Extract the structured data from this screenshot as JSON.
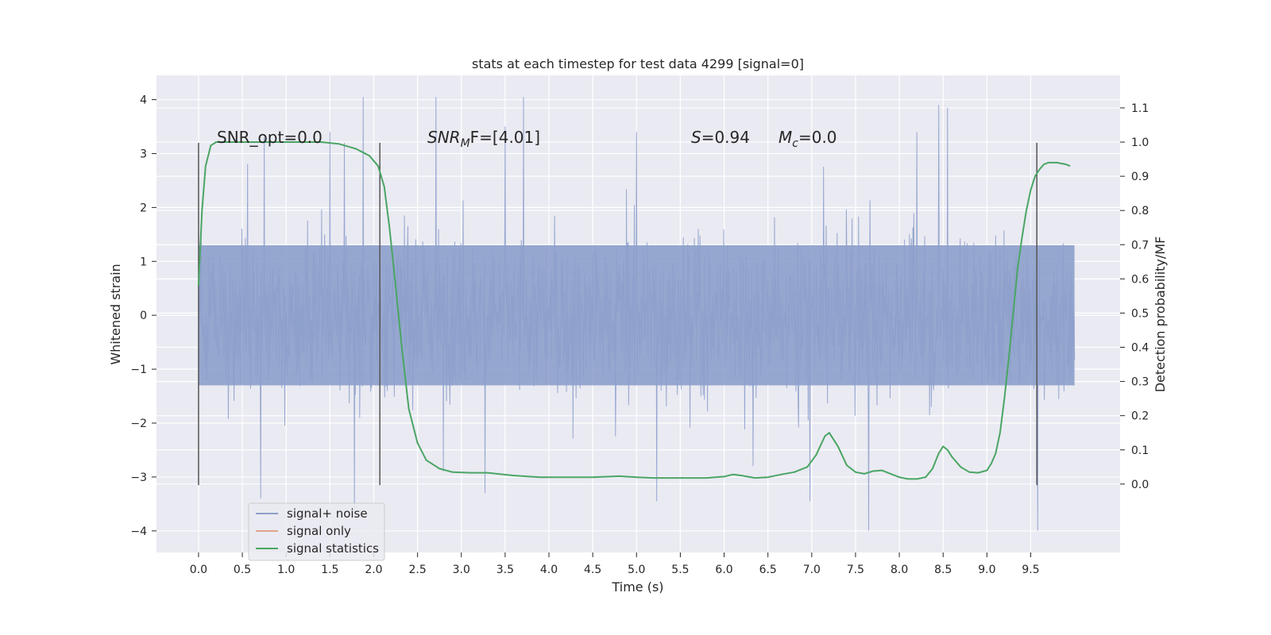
{
  "chart_data": {
    "type": "line",
    "title": "stats at each timestep for test data 4299 [signal=0]",
    "xlabel": "Time (s)",
    "ylabel": "Whitened strain",
    "ylabel_right": "Detection probability/MF",
    "xlim": [
      -0.48,
      10.52
    ],
    "ylim": [
      -4.4,
      4.45
    ],
    "ylim_right": [
      -0.2,
      1.195
    ],
    "x_ticks": [
      0.0,
      0.5,
      1.0,
      1.5,
      2.0,
      2.5,
      3.0,
      3.5,
      4.0,
      4.5,
      5.0,
      5.5,
      6.0,
      6.5,
      7.0,
      7.5,
      8.0,
      8.5,
      9.0,
      9.5
    ],
    "x_tick_labels": [
      "0.0",
      "0.5",
      "1.0",
      "1.5",
      "2.0",
      "2.5",
      "3.0",
      "3.5",
      "4.0",
      "4.5",
      "5.0",
      "5.5",
      "6.0",
      "6.5",
      "7.0",
      "7.5",
      "8.0",
      "8.5",
      "9.0",
      "9.5"
    ],
    "y_ticks": [
      -4,
      -3,
      -2,
      -1,
      0,
      1,
      2,
      3,
      4
    ],
    "y_tick_labels": [
      "−4",
      "−3",
      "−2",
      "−1",
      "0",
      "1",
      "2",
      "3",
      "4"
    ],
    "y_right_ticks": [
      0.0,
      0.1,
      0.2,
      0.3,
      0.4,
      0.5,
      0.6,
      0.7,
      0.8,
      0.9,
      1.0,
      1.1
    ],
    "y_right_tick_labels": [
      "0.0",
      "0.1",
      "0.2",
      "0.3",
      "0.4",
      "0.5",
      "0.6",
      "0.7",
      "0.8",
      "0.9",
      "1.0",
      "1.1"
    ],
    "grid": true,
    "legend_position": "lower-left",
    "annotations": {
      "snr_opt": "SNR_opt=0.0",
      "snr_mf_main": "SNR",
      "snr_mf_sub": "M",
      "snr_mf_rest": "F=[4.01]",
      "s_main": "S",
      "s_rest": "=0.94",
      "mc_main": "M",
      "mc_sub": "c",
      "mc_rest": "=0.0"
    },
    "vertical_markers_x": [
      0.0,
      2.07,
      9.57
    ],
    "vertical_markers_yrange": [
      -3.15,
      3.2
    ],
    "series": [
      {
        "name": "signal+ noise",
        "color": "#8da0cb",
        "axis": "left",
        "x_range": [
          0.0,
          10.0
        ],
        "band": [
          -1.3,
          1.3
        ],
        "notable_spikes": [
          {
            "x": 1.5,
            "y": 3.4
          },
          {
            "x": 1.88,
            "y": 4.05
          },
          {
            "x": 1.78,
            "y": -3.6
          },
          {
            "x": 2.71,
            "y": 4.05
          },
          {
            "x": 3.71,
            "y": 4.05
          },
          {
            "x": 3.5,
            "y": 3.5
          },
          {
            "x": 3.27,
            "y": -3.3
          },
          {
            "x": 5.0,
            "y": 3.4
          },
          {
            "x": 5.23,
            "y": -3.45
          },
          {
            "x": 6.33,
            "y": -2.8
          },
          {
            "x": 6.98,
            "y": -3.45
          },
          {
            "x": 7.65,
            "y": -4.0
          },
          {
            "x": 8.45,
            "y": 3.9
          },
          {
            "x": 8.55,
            "y": 3.85
          },
          {
            "x": 9.58,
            "y": -4.0
          },
          {
            "x": 0.71,
            "y": -3.4
          },
          {
            "x": 0.75,
            "y": 3.3
          },
          {
            "x": 8.2,
            "y": 3.4
          }
        ]
      },
      {
        "name": "signal only",
        "color": "#e1a58a",
        "axis": "left",
        "x": [],
        "y": []
      },
      {
        "name": "signal statistics",
        "color": "#4aa564",
        "axis": "right",
        "x": [
          0.0,
          0.04,
          0.08,
          0.14,
          0.2,
          0.3,
          0.5,
          1.0,
          1.4,
          1.6,
          1.8,
          1.95,
          2.05,
          2.12,
          2.18,
          2.25,
          2.32,
          2.4,
          2.5,
          2.6,
          2.75,
          2.9,
          3.1,
          3.3,
          3.6,
          3.9,
          4.2,
          4.5,
          4.8,
          5.0,
          5.2,
          5.5,
          5.8,
          6.0,
          6.1,
          6.2,
          6.35,
          6.5,
          6.65,
          6.8,
          6.95,
          7.05,
          7.15,
          7.2,
          7.3,
          7.4,
          7.5,
          7.6,
          7.7,
          7.8,
          7.9,
          8.0,
          8.1,
          8.2,
          8.3,
          8.38,
          8.45,
          8.5,
          8.55,
          8.6,
          8.7,
          8.8,
          8.9,
          9.0,
          9.05,
          9.1,
          9.15,
          9.2,
          9.25,
          9.3,
          9.35,
          9.4,
          9.45,
          9.5,
          9.55,
          9.6,
          9.65,
          9.7,
          9.8,
          9.9,
          9.95
        ],
        "y": [
          0.58,
          0.8,
          0.93,
          0.99,
          1.0,
          1.0,
          1.0,
          1.0,
          1.0,
          0.995,
          0.98,
          0.96,
          0.93,
          0.87,
          0.75,
          0.58,
          0.4,
          0.22,
          0.12,
          0.07,
          0.045,
          0.035,
          0.033,
          0.033,
          0.025,
          0.02,
          0.02,
          0.02,
          0.023,
          0.02,
          0.018,
          0.018,
          0.018,
          0.022,
          0.028,
          0.025,
          0.018,
          0.02,
          0.028,
          0.035,
          0.05,
          0.085,
          0.14,
          0.15,
          0.11,
          0.055,
          0.035,
          0.03,
          0.038,
          0.04,
          0.03,
          0.02,
          0.015,
          0.015,
          0.02,
          0.045,
          0.09,
          0.11,
          0.1,
          0.08,
          0.05,
          0.035,
          0.033,
          0.04,
          0.06,
          0.09,
          0.15,
          0.25,
          0.37,
          0.5,
          0.63,
          0.72,
          0.8,
          0.86,
          0.9,
          0.92,
          0.935,
          0.94,
          0.94,
          0.935,
          0.93
        ]
      }
    ]
  }
}
